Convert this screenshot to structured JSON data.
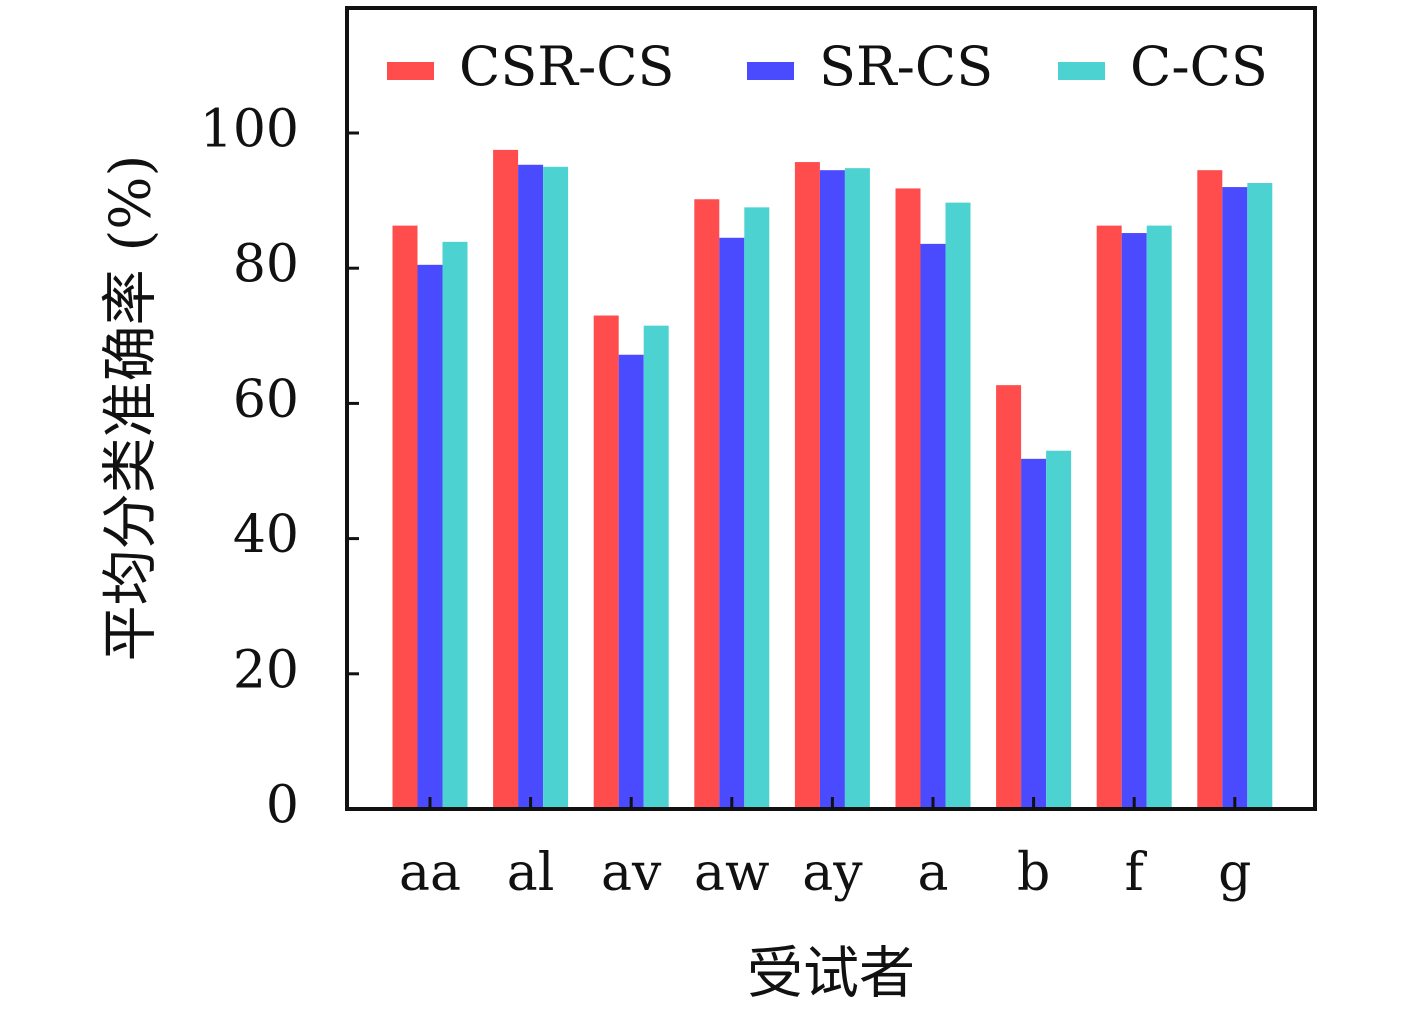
{
  "chart_data": {
    "type": "bar",
    "title": "",
    "xlabel": "受试者",
    "ylabel": "平均分类准确率 (%)",
    "categories": [
      "aa",
      "al",
      "av",
      "aw",
      "ay",
      "a",
      "b",
      "f",
      "g"
    ],
    "series": [
      {
        "name": "CSR-CS",
        "color": "#ff4d4d",
        "values": [
          86.3,
          97.5,
          73.0,
          90.2,
          95.7,
          91.8,
          62.7,
          86.3,
          94.5
        ]
      },
      {
        "name": "SR-CS",
        "color": "#4a4aff",
        "values": [
          80.5,
          95.3,
          67.2,
          84.5,
          94.5,
          83.6,
          51.8,
          85.2,
          92.0
        ]
      },
      {
        "name": "C-CS",
        "color": "#4dd2d2",
        "values": [
          83.9,
          95.0,
          71.5,
          89.0,
          94.8,
          89.7,
          53.0,
          86.3,
          92.6
        ]
      }
    ],
    "ylim": [
      0,
      118
    ],
    "yticks": [
      0,
      20,
      40,
      60,
      80,
      100
    ],
    "legend_position": "top",
    "grid": false
  }
}
